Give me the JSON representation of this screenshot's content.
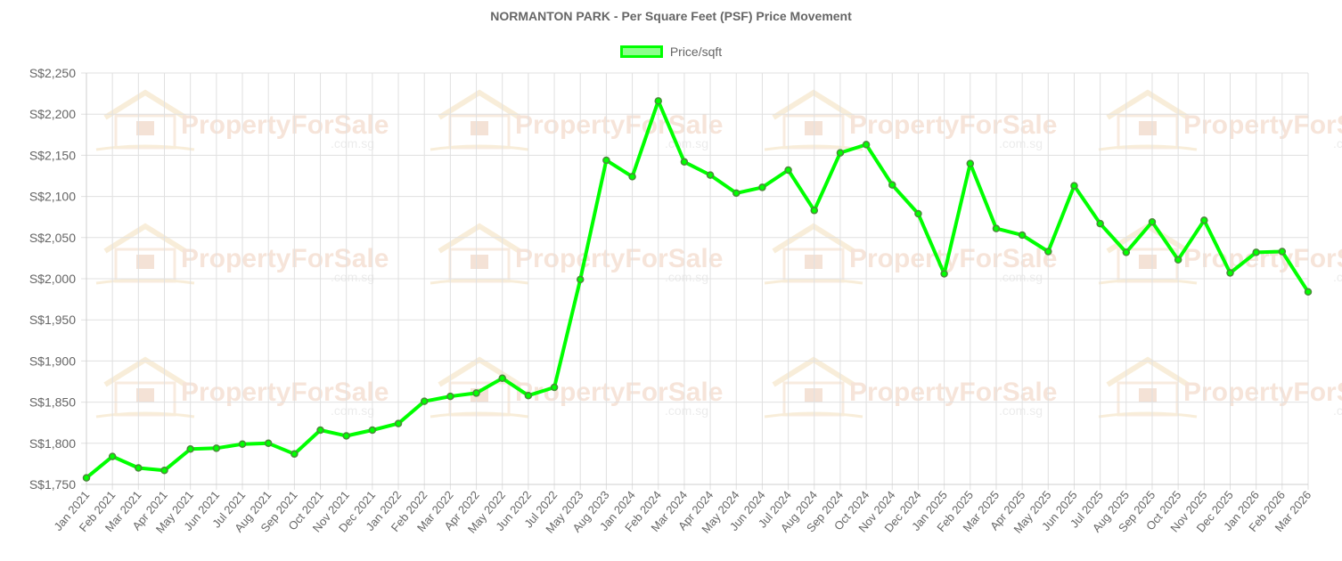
{
  "chart_data": {
    "type": "line",
    "title": "NORMANTON PARK - Per Square Feet (PSF) Price Movement",
    "xlabel": "",
    "ylabel": "",
    "ylim": [
      1750,
      2250
    ],
    "ytick_step": 50,
    "y_prefix": "S$",
    "grid": true,
    "legend_position": "top",
    "categories": [
      "Jan 2021",
      "Feb 2021",
      "Mar 2021",
      "Apr 2021",
      "May 2021",
      "Jun 2021",
      "Jul 2021",
      "Aug 2021",
      "Sep 2021",
      "Oct 2021",
      "Nov 2021",
      "Dec 2021",
      "Jan 2022",
      "Feb 2022",
      "Mar 2022",
      "Apr 2022",
      "May 2022",
      "Jun 2022",
      "Jul 2022",
      "May 2023",
      "Aug 2023",
      "Jan 2024",
      "Feb 2024",
      "Mar 2024",
      "Apr 2024",
      "May 2024",
      "Jun 2024",
      "Jul 2024",
      "Aug 2024",
      "Sep 2024",
      "Oct 2024",
      "Nov 2024",
      "Dec 2024",
      "Jan 2025",
      "Feb 2025",
      "Mar 2025",
      "Apr 2025",
      "May 2025",
      "Jun 2025",
      "Jul 2025",
      "Aug 2025",
      "Sep 2025",
      "Oct 2025",
      "Nov 2025",
      "Dec 2025",
      "Jan 2026",
      "Feb 2026",
      "Mar 2026"
    ],
    "series": [
      {
        "name": "Price/sqft",
        "color": "#00ff00",
        "values": [
          1758,
          1784,
          1770,
          1767,
          1793,
          1794,
          1799,
          1800,
          1787,
          1816,
          1809,
          1816,
          1824,
          1851,
          1857,
          1861,
          1879,
          1858,
          1868,
          1999,
          2144,
          2124,
          2216,
          2142,
          2126,
          2104,
          2111,
          2132,
          2083,
          2153,
          2163,
          2114,
          2079,
          2006,
          2140,
          2061,
          2053,
          2033,
          2113,
          2067,
          2032,
          2069,
          2023,
          2071,
          2007,
          2032,
          2033,
          1984
        ]
      }
    ]
  },
  "watermark": {
    "brand": "PropertyForSale",
    "domain": ".com.sg"
  }
}
